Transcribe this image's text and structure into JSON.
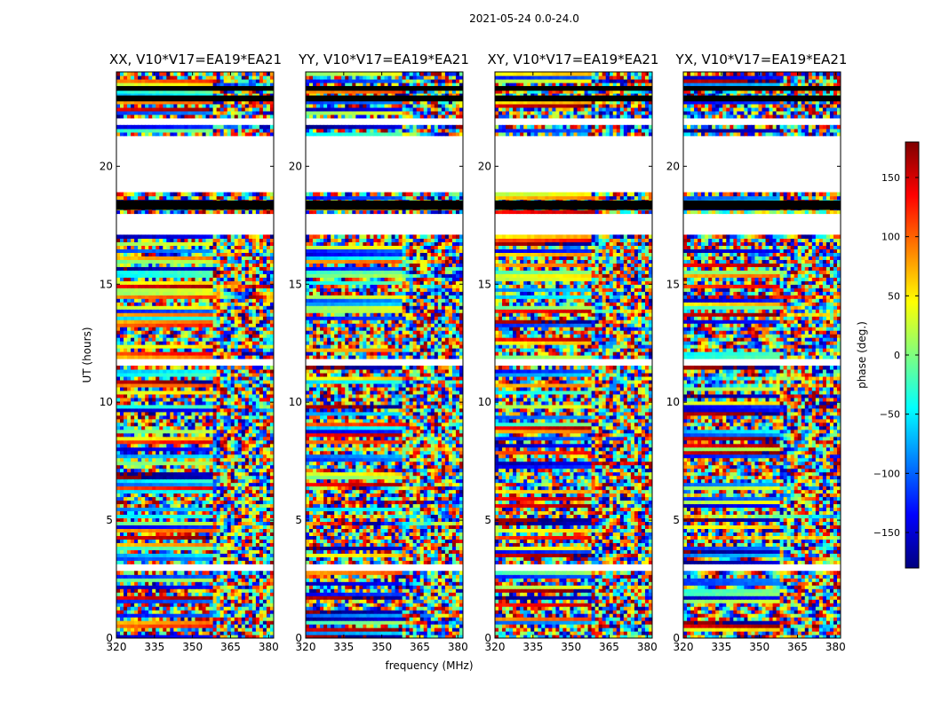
{
  "suptitle": "2021-05-24 0.0-24.0",
  "xlabel": "frequency (MHz)",
  "ylabel": "UT (hours)",
  "colorbar": {
    "label": "phase (deg.)",
    "range": [
      -180,
      180
    ],
    "ticks": [
      150,
      100,
      50,
      0,
      -50,
      -100,
      -150
    ],
    "tick_labels": [
      "150",
      "100",
      "50",
      "0",
      "−50",
      "−100",
      "−150"
    ],
    "colormap": [
      "#00007f",
      "#0000ff",
      "#007fff",
      "#00ffff",
      "#7fff7f",
      "#ffff00",
      "#ff7f00",
      "#ff0000",
      "#7f0000"
    ]
  },
  "chart_data": {
    "type": "heatmap",
    "title": "2021-05-24 0.0-24.0",
    "xlabel": "frequency (MHz)",
    "ylabel": "UT (hours)",
    "xlim": [
      320,
      382
    ],
    "ylim": [
      0,
      24
    ],
    "xticks": [
      320,
      335,
      350,
      365,
      380
    ],
    "xtick_labels": [
      "320",
      "335",
      "350",
      "365",
      "380"
    ],
    "yticks": [
      0,
      5,
      10,
      15,
      20
    ],
    "ytick_labels": [
      "0",
      "5",
      "10",
      "15",
      "20"
    ],
    "value": "phase (deg.)",
    "vlim": [
      -180,
      180
    ],
    "panels": [
      {
        "title": "XX, V10*V17=EA19*EA21",
        "pol": "XX"
      },
      {
        "title": "YY, V10*V17=EA19*EA21",
        "pol": "YY"
      },
      {
        "title": "XY, V10*V17=EA19*EA21",
        "pol": "XY"
      },
      {
        "title": "YX, V10*V17=EA19*EA21",
        "pol": "YX"
      }
    ],
    "empty_gaps_hours": [
      [
        18.9,
        21.3
      ],
      [
        17.1,
        18.0
      ],
      [
        21.75,
        22.0
      ],
      [
        0.3,
        0.35
      ],
      [
        2.9,
        3.1
      ],
      [
        11.5,
        11.8
      ]
    ],
    "flagged_black_bands_hours": [
      [
        18.15,
        18.55
      ],
      [
        22.75,
        23.0
      ],
      [
        23.2,
        23.4
      ]
    ]
  }
}
